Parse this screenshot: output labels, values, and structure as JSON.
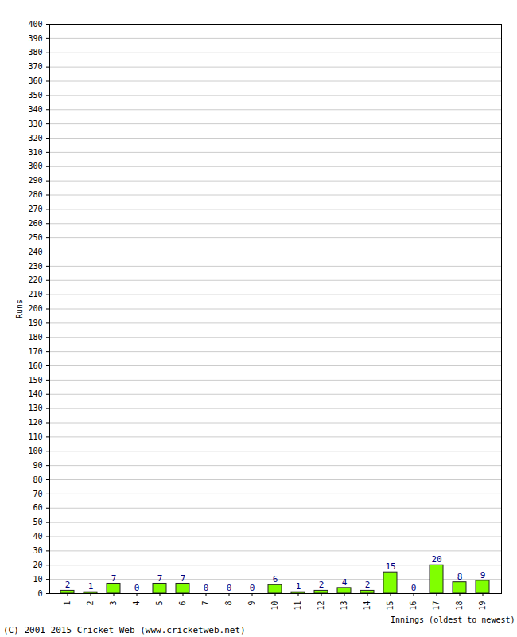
{
  "chart_data": {
    "type": "bar",
    "categories": [
      "1",
      "2",
      "3",
      "4",
      "5",
      "6",
      "7",
      "8",
      "9",
      "10",
      "11",
      "12",
      "13",
      "14",
      "15",
      "16",
      "17",
      "18",
      "19"
    ],
    "values": [
      2,
      1,
      7,
      0,
      7,
      7,
      0,
      0,
      0,
      6,
      1,
      2,
      4,
      2,
      15,
      0,
      20,
      8,
      9
    ],
    "color": "#80ff00",
    "xlabel": "Innings (oldest to newest)",
    "ylabel": "Runs",
    "caption": "(C) 2001-2015 Cricket Web (www.cricketweb.net)",
    "ylim": [
      0,
      400
    ],
    "yticks": [
      0,
      10,
      20,
      30,
      40,
      50,
      60,
      70,
      80,
      90,
      100,
      110,
      120,
      130,
      140,
      150,
      160,
      170,
      180,
      190,
      200,
      210,
      220,
      230,
      240,
      250,
      260,
      270,
      280,
      290,
      300,
      310,
      320,
      330,
      340,
      350,
      360,
      370,
      380,
      390,
      400
    ],
    "grid": true,
    "data_labels": true
  }
}
